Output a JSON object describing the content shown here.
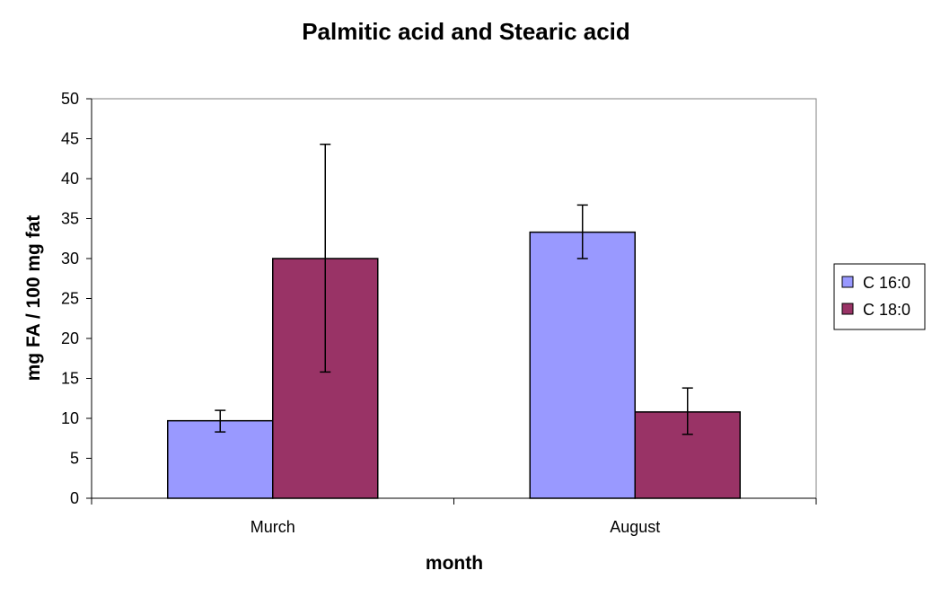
{
  "chart_data": {
    "type": "bar",
    "title": "Palmitic acid and Stearic acid",
    "xlabel": "month",
    "ylabel": "mg FA / 100 mg fat",
    "categories": [
      "Murch",
      "August"
    ],
    "ylim": [
      0,
      50
    ],
    "yticks": [
      "0",
      "5",
      "10",
      "15",
      "20",
      "25",
      "30",
      "35",
      "40",
      "45",
      "50"
    ],
    "grid": false,
    "legend_position": "right",
    "series": [
      {
        "name": "C 16:0",
        "color": "#9999ff",
        "values": [
          9.7,
          33.3
        ],
        "error_low": [
          8.3,
          30.0
        ],
        "error_high": [
          11.0,
          36.7
        ]
      },
      {
        "name": "C 18:0",
        "color": "#993366",
        "values": [
          30.0,
          10.8
        ],
        "error_low": [
          15.8,
          8.0
        ],
        "error_high": [
          44.3,
          13.8
        ]
      }
    ]
  }
}
